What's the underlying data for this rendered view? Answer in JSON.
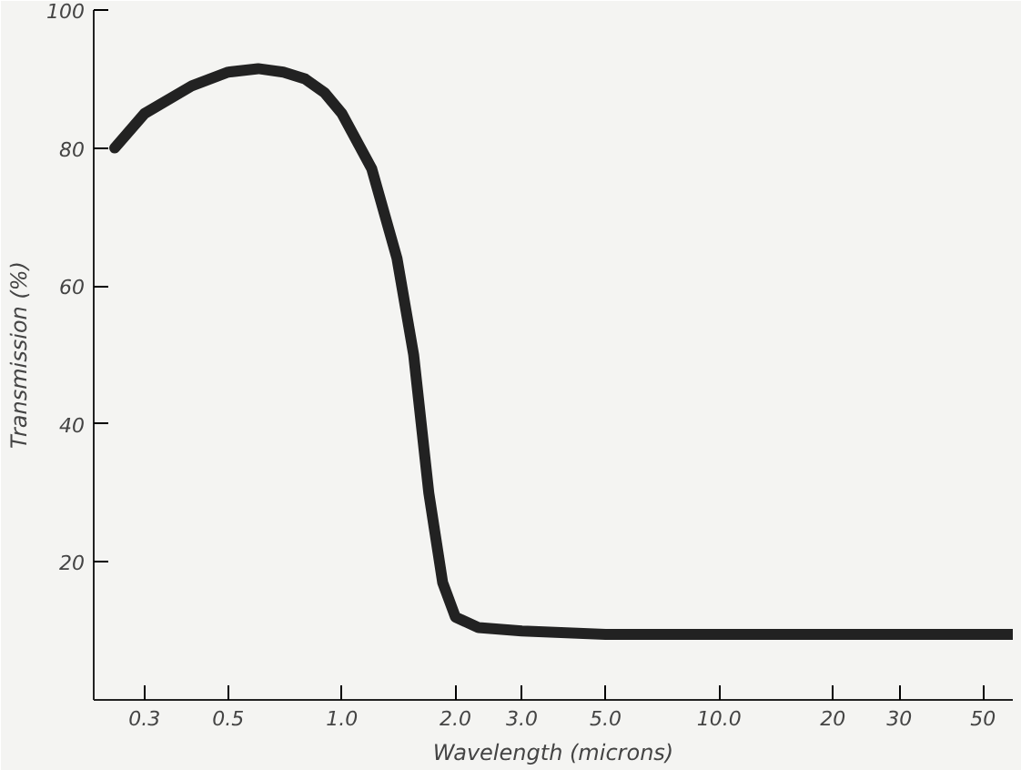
{
  "chart_data": {
    "type": "line",
    "xlabel": "Wavelength (microns)",
    "ylabel": "Transmission (%)",
    "log": "x",
    "xlim": [
      0.22,
      60
    ],
    "ylim": [
      0,
      100
    ],
    "xticks": [
      {
        "value": 0.3,
        "label": "0.3"
      },
      {
        "value": 0.5,
        "label": "0.5"
      },
      {
        "value": 1,
        "label": "1.0"
      },
      {
        "value": 2,
        "label": "2.0"
      },
      {
        "value": 3,
        "label": "3.0"
      },
      {
        "value": 5,
        "label": "5.0"
      },
      {
        "value": 10,
        "label": "10.0"
      },
      20,
      30,
      50
    ],
    "yticks": [
      20,
      40,
      60,
      80,
      100
    ],
    "grid": false,
    "marker": "none",
    "line_style": "solid",
    "series": [
      {
        "color": "#222222",
        "x": [
          0.25,
          0.3,
          0.4,
          0.5,
          0.6,
          0.7,
          0.8,
          0.9,
          1.0,
          1.2,
          1.4,
          1.55,
          1.7,
          1.85,
          2.0,
          2.3,
          3,
          5,
          10,
          20,
          50,
          60
        ],
        "values": [
          80,
          85,
          89,
          91,
          91.5,
          91,
          90,
          88,
          85,
          77,
          64,
          50,
          30,
          17,
          12,
          10.5,
          10,
          9.5,
          9.5,
          9.5,
          9.5,
          9.5
        ]
      }
    ]
  }
}
